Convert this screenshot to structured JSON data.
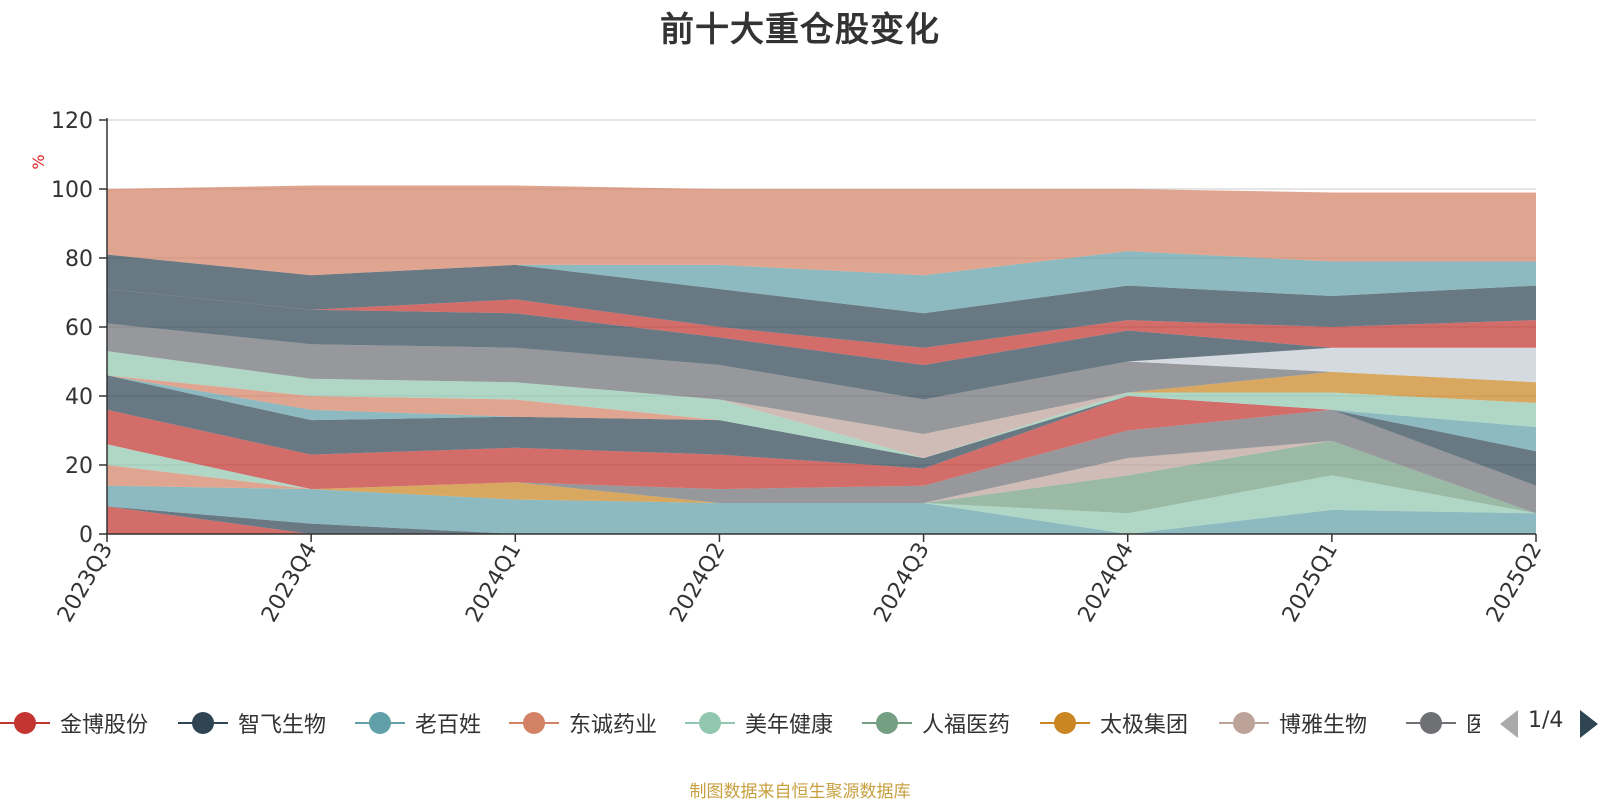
{
  "title": "前十大重仓股变化",
  "footer": "制图数据来自恒生聚源数据库",
  "pager": {
    "text": "1/4"
  },
  "chart_data": {
    "type": "area",
    "title": "前十大重仓股变化",
    "ylabel": "%",
    "ylim": [
      0,
      120
    ],
    "yticks": [
      0,
      20,
      40,
      60,
      80,
      100,
      120
    ],
    "grid": true,
    "stacked": true,
    "legend_position": "bottom",
    "categories": [
      "2023Q3",
      "2023Q4",
      "2024Q1",
      "2024Q2",
      "2024Q3",
      "2024Q4",
      "2025Q1",
      "2025Q2"
    ],
    "series": [
      {
        "name": "金博股份",
        "color": "#c23531",
        "values": [
          8,
          0,
          0,
          0,
          0,
          0,
          0,
          0
        ]
      },
      {
        "name": "智飞生物",
        "color": "#2f4554",
        "values": [
          0,
          3,
          0,
          0,
          0,
          0,
          0,
          0
        ]
      },
      {
        "name": "老百姓",
        "color": "#61a0a8",
        "values": [
          6,
          10,
          10,
          9,
          9,
          0,
          7,
          6
        ]
      },
      {
        "name": "东诚药业",
        "color": "#d48265",
        "values": [
          6,
          0,
          0,
          0,
          0,
          0,
          0,
          0
        ]
      },
      {
        "name": "美年健康",
        "color": "#91c7ae",
        "values": [
          6,
          0,
          0,
          0,
          0,
          6,
          10,
          0
        ]
      },
      {
        "name": "人福医药",
        "color": "#749f83",
        "values": [
          0,
          0,
          0,
          0,
          0,
          11,
          10,
          0
        ]
      },
      {
        "name": "太极集团",
        "color": "#ca8622",
        "values": [
          0,
          0,
          5,
          0,
          0,
          0,
          0,
          0
        ]
      },
      {
        "name": "博雅生物",
        "color": "#bda29a",
        "values": [
          0,
          0,
          0,
          0,
          0,
          5,
          0,
          0
        ]
      },
      {
        "name": "医疗服务",
        "color": "#6e7074",
        "values": [
          0,
          0,
          0,
          4,
          5,
          8,
          9,
          8
        ]
      },
      {
        "color": "#c23531",
        "values": [
          10,
          10,
          10,
          10,
          5,
          10,
          0,
          0
        ]
      },
      {
        "color": "#2f4554",
        "values": [
          10,
          10,
          9,
          10,
          3,
          0,
          0,
          10
        ]
      },
      {
        "color": "#61a0a8",
        "values": [
          0,
          3,
          0,
          0,
          0,
          0,
          0,
          7
        ]
      },
      {
        "color": "#d48265",
        "values": [
          0,
          4,
          5,
          0,
          0,
          0,
          0,
          0
        ]
      },
      {
        "color": "#91c7ae",
        "values": [
          7,
          5,
          5,
          6,
          0,
          1,
          5,
          7
        ]
      },
      {
        "color": "#749f83",
        "values": [
          0,
          0,
          0,
          0,
          0,
          0,
          0,
          0
        ]
      },
      {
        "color": "#ca8622",
        "values": [
          0,
          0,
          0,
          0,
          0,
          0,
          6,
          6
        ]
      },
      {
        "color": "#bda29a",
        "values": [
          0,
          0,
          0,
          0,
          7,
          0,
          0,
          0
        ]
      },
      {
        "color": "#6e7074",
        "values": [
          8,
          10,
          10,
          10,
          10,
          9,
          0,
          0
        ]
      },
      {
        "color": "#c4ccd3",
        "values": [
          0,
          0,
          0,
          0,
          0,
          0,
          7,
          10
        ]
      },
      {
        "color": "#2f4554",
        "values": [
          10,
          10,
          10,
          8,
          10,
          9,
          0,
          0
        ]
      },
      {
        "color": "#c23531",
        "values": [
          0,
          0,
          4,
          3,
          5,
          3,
          6,
          8
        ]
      },
      {
        "color": "#2f4554",
        "values": [
          10,
          10,
          10,
          11,
          10,
          10,
          9,
          10
        ]
      },
      {
        "color": "#61a0a8",
        "values": [
          0,
          0,
          0,
          7,
          11,
          10,
          10,
          7
        ]
      },
      {
        "color": "#d48265",
        "values": [
          19,
          26,
          23,
          22,
          25,
          18,
          20,
          20
        ]
      }
    ]
  }
}
